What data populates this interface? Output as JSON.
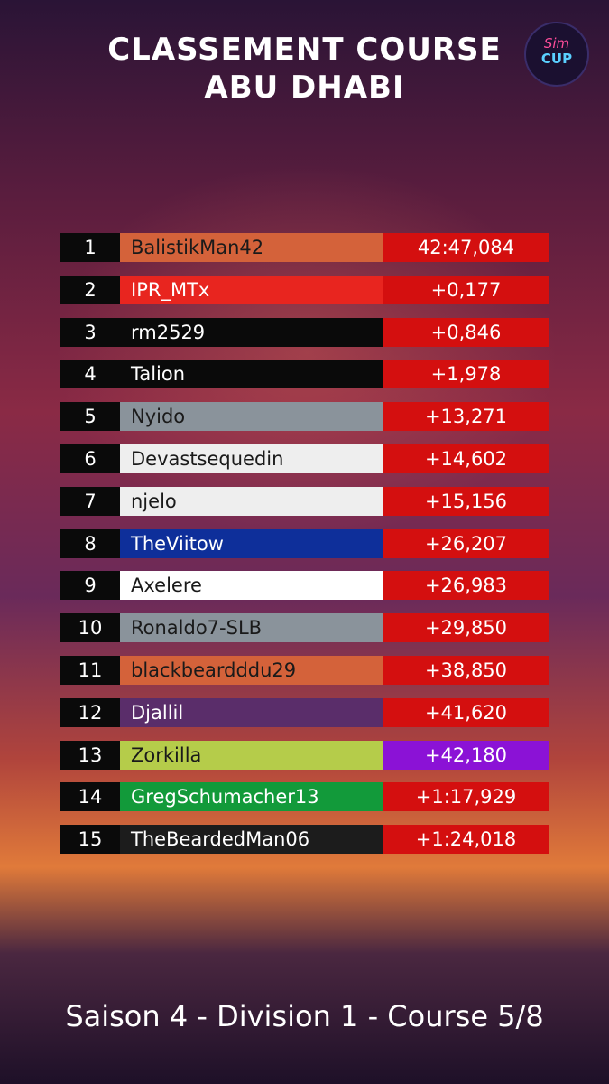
{
  "header": {
    "title_lines": [
      "CLASSEMENT COURSE",
      "ABU DHABI"
    ],
    "logo": [
      "Sim",
      "CUP"
    ]
  },
  "table": {
    "time_color": "#d40f0f",
    "rows": [
      {
        "position": "1",
        "driver": "BalistikMan42",
        "time": "42:47,084",
        "color": "#d4623a",
        "text_color": "#1a1a1a"
      },
      {
        "position": "2",
        "driver": "IPR_MTx",
        "time": "+0,177",
        "color": "#e8251f",
        "text_color": "#ffffff"
      },
      {
        "position": "3",
        "driver": "rm2529",
        "time": "+0,846",
        "color": "#0a0a0a",
        "text_color": "#ffffff"
      },
      {
        "position": "4",
        "driver": "Talion",
        "time": "+1,978",
        "color": "#0a0a0a",
        "text_color": "#ffffff"
      },
      {
        "position": "5",
        "driver": "Nyido",
        "time": "+13,271",
        "color": "#8a939b",
        "text_color": "#1a1a1a"
      },
      {
        "position": "6",
        "driver": "Devastsequedin",
        "time": "+14,602",
        "color": "#eeeeee",
        "text_color": "#1a1a1a"
      },
      {
        "position": "7",
        "driver": "njelo",
        "time": "+15,156",
        "color": "#eeeeee",
        "text_color": "#1a1a1a"
      },
      {
        "position": "8",
        "driver": "TheViitow",
        "time": "+26,207",
        "color": "#0e2f9a",
        "text_color": "#ffffff"
      },
      {
        "position": "9",
        "driver": "Axelere",
        "time": "+26,983",
        "color": "#ffffff",
        "text_color": "#1a1a1a"
      },
      {
        "position": "10",
        "driver": "Ronaldo7-SLB",
        "time": "+29,850",
        "color": "#8a939b",
        "text_color": "#1a1a1a"
      },
      {
        "position": "11",
        "driver": "blackbeardddu29",
        "time": "+38,850",
        "color": "#d4623a",
        "text_color": "#1a1a1a"
      },
      {
        "position": "12",
        "driver": "Djallil",
        "time": "+41,620",
        "color": "#5a2d6a",
        "text_color": "#ffffff"
      },
      {
        "position": "13",
        "driver": "Zorkilla",
        "time": "+42,180",
        "color": "#b5cc4a",
        "text_color": "#1a1a1a",
        "time_color": "#8b12d6"
      },
      {
        "position": "14",
        "driver": "GregSchumacher13",
        "time": "+1:17,929",
        "color": "#129a3a",
        "text_color": "#ffffff"
      },
      {
        "position": "15",
        "driver": "TheBeardedMan06",
        "time": "+1:24,018",
        "color": "#1c1c1c",
        "text_color": "#ffffff"
      }
    ]
  },
  "footer": "Saison 4 - Division 1 - Course 5/8"
}
